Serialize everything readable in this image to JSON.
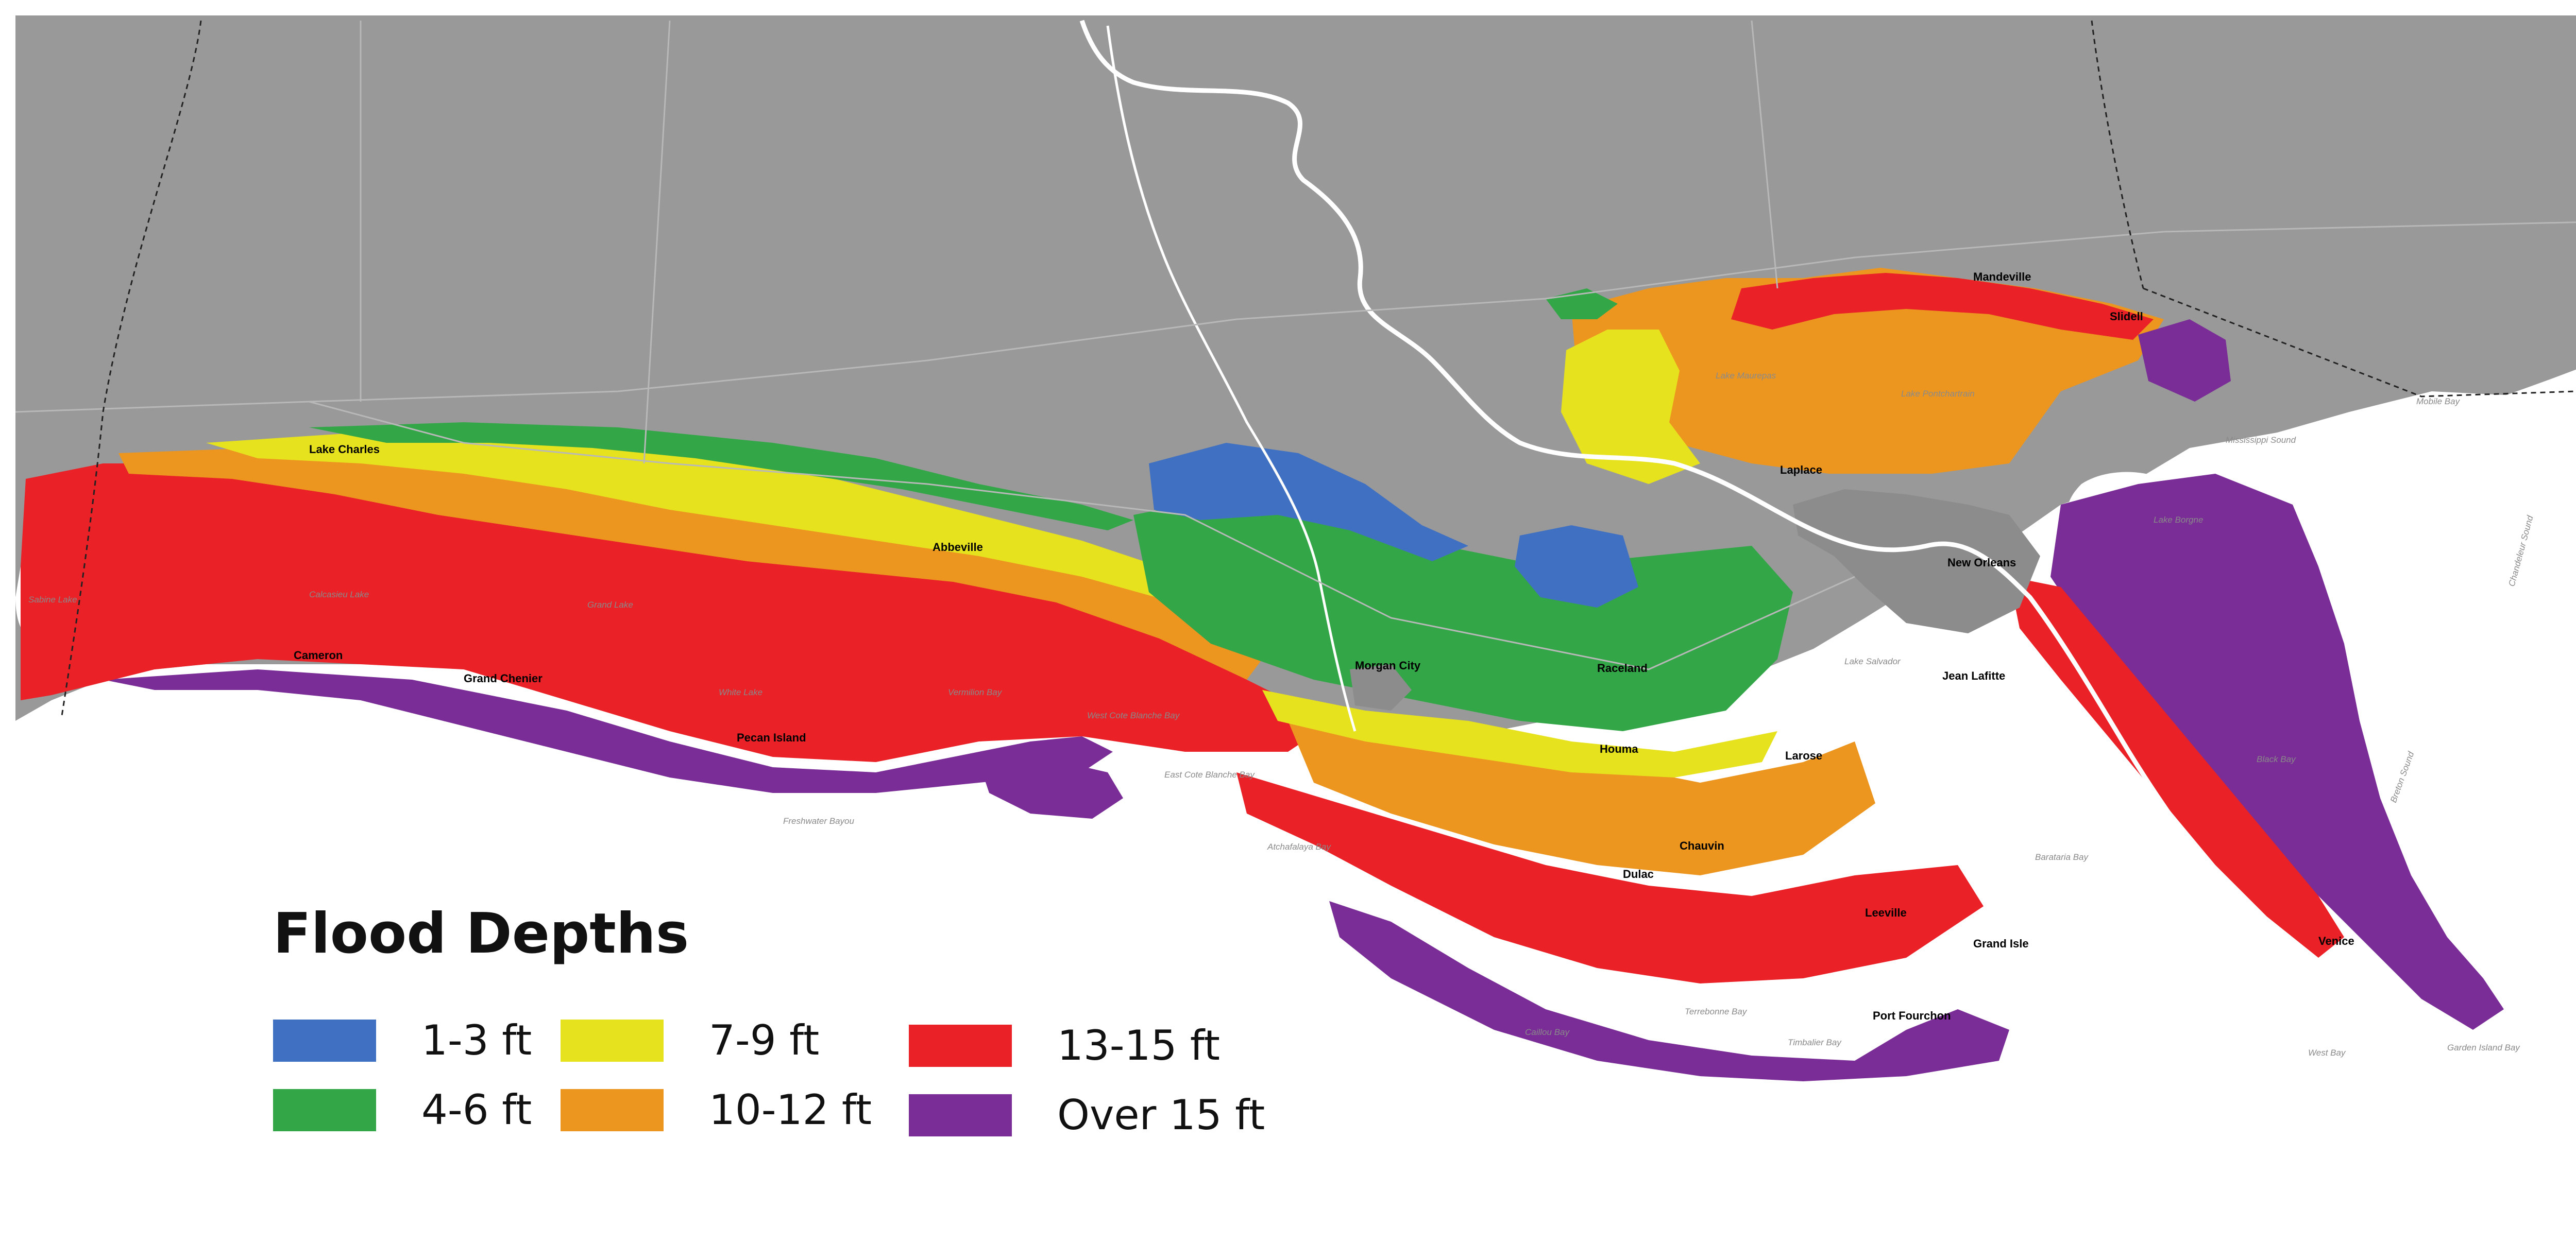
{
  "legend": {
    "title": "Flood Depths",
    "items": [
      {
        "label": "1-3 ft",
        "color": "#3f70c2"
      },
      {
        "label": "4-6 ft",
        "color": "#33a748"
      },
      {
        "label": "7-9 ft",
        "color": "#e6e21e"
      },
      {
        "label": "10-12 ft",
        "color": "#ec9620"
      },
      {
        "label": "13-15 ft",
        "color": "#ea2127"
      },
      {
        "label": "Over 15 ft",
        "color": "#7a2d96"
      }
    ]
  },
  "colors": {
    "land": "#999999",
    "water": "#ffffff",
    "roads": "#b8b8b8",
    "protected_area": "#8c8c8c"
  },
  "cities": [
    "Mandeville",
    "Slidell",
    "Laplace",
    "New Orleans",
    "Lake Charles",
    "Abbeville",
    "Cameron",
    "Grand Chenier",
    "Pecan Island",
    "Morgan City",
    "Raceland",
    "Houma",
    "Larose",
    "Jean Lafitte",
    "Chauvin",
    "Dulac",
    "Leeville",
    "Grand Isle",
    "Port Fourchon",
    "Venice"
  ],
  "water_labels": [
    "Lake Pontchartrain",
    "Lake Maurepas",
    "Lake Borgne",
    "Mobile Bay",
    "Mississippi Sound",
    "Chandeleur Sound",
    "Breton Sound",
    "Black Bay",
    "Barataria Bay",
    "Terrebonne Bay",
    "Timbalier Bay",
    "Caillou Bay",
    "Atchafalaya Bay",
    "East Cote Blanche Bay",
    "West Cote Blanche Bay",
    "Vermilion Bay",
    "White Lake",
    "Grand Lake",
    "Calcasieu Lake",
    "Sabine Lake",
    "Lake Salvador",
    "West Bay",
    "Garden Island Bay",
    "Freshwater Bayou"
  ]
}
